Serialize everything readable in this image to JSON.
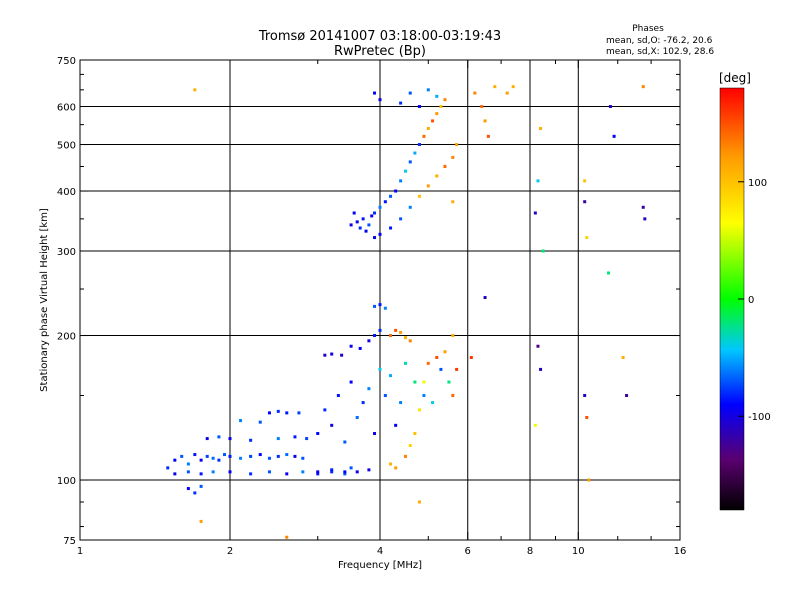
{
  "chart_data": {
    "type": "scatter",
    "title": "Tromsø 20141007 03:18:00-03:19:43",
    "subtitle": "RwPretec (Bp)",
    "xlabel": "Frequency [MHz]",
    "ylabel": "Stationary phase Virtual Height [km]",
    "x_scale": "log",
    "y_scale": "log",
    "xlim": [
      1,
      16
    ],
    "ylim": [
      75,
      750
    ],
    "x_ticks": [
      1,
      2,
      4,
      6,
      8,
      10,
      16
    ],
    "x_tick_labels": [
      "1",
      "2",
      "4",
      "6",
      "8",
      "10",
      "16"
    ],
    "x_gridlines": [
      2,
      4,
      6,
      8,
      10
    ],
    "y_ticks": [
      75,
      100,
      200,
      300,
      400,
      500,
      600,
      750
    ],
    "y_tick_labels": [
      "75",
      "100",
      "200",
      "300",
      "400",
      "500",
      "600",
      "750"
    ],
    "y_gridlines": [
      100,
      200,
      300,
      400,
      500,
      600
    ],
    "grid": true,
    "phases_box": {
      "title": "Phases",
      "line1": "mean, sd,O: -76.2, 20.6",
      "line2": "mean, sd,X: 102.9, 28.6"
    },
    "colorbar": {
      "label": "[deg]",
      "range": [
        -180,
        180
      ],
      "ticks": [
        100,
        0,
        -100
      ],
      "tick_labels": [
        "100",
        "0",
        "-100"
      ],
      "colormap": "rainbow"
    },
    "series": [
      {
        "comment_role": "trace",
        "points": [
          [
            1.5,
            106,
            -80
          ],
          [
            1.55,
            110,
            -90
          ],
          [
            1.6,
            112,
            -70
          ],
          [
            1.65,
            108,
            -60
          ],
          [
            1.7,
            113,
            -85
          ],
          [
            1.75,
            110,
            -95
          ],
          [
            1.8,
            112,
            -75
          ],
          [
            1.85,
            111,
            -65
          ],
          [
            1.9,
            110,
            -80
          ],
          [
            1.95,
            113,
            -70
          ],
          [
            2.0,
            112,
            -85
          ],
          [
            2.1,
            111,
            -60
          ],
          [
            2.2,
            112,
            -75
          ],
          [
            2.3,
            113,
            -90
          ],
          [
            2.4,
            111,
            -70
          ],
          [
            2.5,
            112,
            -80
          ],
          [
            2.6,
            113,
            -65
          ],
          [
            2.7,
            112,
            -95
          ],
          [
            2.8,
            111,
            -70
          ],
          [
            1.55,
            103,
            -100
          ],
          [
            1.65,
            104,
            -70
          ],
          [
            1.75,
            103,
            -85
          ],
          [
            1.85,
            104,
            -60
          ],
          [
            2.0,
            104,
            -90
          ],
          [
            2.2,
            103,
            -80
          ],
          [
            2.4,
            104,
            -70
          ],
          [
            2.6,
            103,
            -95
          ],
          [
            2.8,
            104,
            -60
          ],
          [
            3.0,
            103,
            -85
          ],
          [
            3.2,
            104,
            -80
          ],
          [
            3.4,
            103,
            -70
          ],
          [
            1.65,
            96,
            -90
          ],
          [
            1.7,
            94,
            -80
          ],
          [
            1.75,
            97,
            -70
          ],
          [
            1.8,
            122,
            -100
          ],
          [
            1.9,
            123,
            -70
          ],
          [
            2.0,
            122,
            -95
          ],
          [
            2.2,
            121,
            -80
          ],
          [
            2.5,
            122,
            -60
          ],
          [
            2.7,
            123,
            -85
          ],
          [
            2.85,
            122,
            -75
          ],
          [
            2.4,
            138,
            -90
          ],
          [
            2.5,
            139,
            -80
          ],
          [
            2.6,
            138,
            -85
          ],
          [
            2.75,
            138,
            -75
          ],
          [
            2.1,
            133,
            -60
          ],
          [
            2.3,
            132,
            -70
          ],
          [
            3.0,
            104,
            -95
          ],
          [
            3.2,
            105,
            -85
          ],
          [
            3.4,
            104,
            -90
          ],
          [
            3.5,
            106,
            -70
          ],
          [
            3.6,
            104,
            -95
          ],
          [
            3.8,
            105,
            -100
          ],
          [
            3.0,
            125,
            -90
          ],
          [
            3.1,
            140,
            -80
          ],
          [
            3.2,
            130,
            -100
          ],
          [
            3.3,
            150,
            -85
          ],
          [
            3.4,
            120,
            -70
          ],
          [
            3.5,
            160,
            -90
          ],
          [
            3.6,
            135,
            -65
          ],
          [
            3.7,
            145,
            -80
          ],
          [
            3.8,
            155,
            -60
          ],
          [
            3.9,
            125,
            -95
          ],
          [
            4.0,
            170,
            -40
          ],
          [
            4.1,
            150,
            -70
          ],
          [
            4.2,
            165,
            -50
          ],
          [
            4.3,
            130,
            -90
          ],
          [
            4.4,
            145,
            -60
          ],
          [
            3.1,
            182,
            -110
          ],
          [
            3.2,
            183,
            -100
          ],
          [
            3.35,
            182,
            -105
          ],
          [
            3.5,
            190,
            -95
          ],
          [
            3.65,
            188,
            -90
          ],
          [
            3.8,
            195,
            -100
          ],
          [
            3.9,
            200,
            -85
          ],
          [
            4.0,
            205,
            -80
          ],
          [
            3.9,
            230,
            -70
          ],
          [
            4.0,
            232,
            -85
          ],
          [
            4.1,
            228,
            -60
          ],
          [
            4.2,
            200,
            140
          ],
          [
            4.3,
            205,
            150
          ],
          [
            4.4,
            203,
            120
          ],
          [
            4.5,
            198,
            110
          ],
          [
            4.6,
            195,
            130
          ],
          [
            4.2,
            108,
            110
          ],
          [
            4.3,
            106,
            120
          ],
          [
            4.5,
            112,
            130
          ],
          [
            4.6,
            118,
            90
          ],
          [
            4.7,
            125,
            100
          ],
          [
            4.8,
            140,
            80
          ],
          [
            4.9,
            160,
            60
          ],
          [
            5.0,
            175,
            140
          ],
          [
            5.2,
            180,
            150
          ],
          [
            5.4,
            185,
            120
          ],
          [
            5.6,
            200,
            110
          ],
          [
            5.7,
            170,
            160
          ],
          [
            5.6,
            150,
            140
          ],
          [
            4.5,
            175,
            -30
          ],
          [
            4.7,
            160,
            -20
          ],
          [
            4.9,
            150,
            -60
          ],
          [
            5.1,
            145,
            -40
          ],
          [
            5.3,
            170,
            -70
          ],
          [
            5.5,
            160,
            -20
          ],
          [
            3.5,
            340,
            -100
          ],
          [
            3.55,
            360,
            -90
          ],
          [
            3.6,
            345,
            -95
          ],
          [
            3.65,
            335,
            -80
          ],
          [
            3.7,
            350,
            -85
          ],
          [
            3.75,
            330,
            -90
          ],
          [
            3.8,
            340,
            -70
          ],
          [
            3.85,
            355,
            -95
          ],
          [
            3.9,
            360,
            -80
          ],
          [
            4.0,
            370,
            -60
          ],
          [
            4.1,
            380,
            -85
          ],
          [
            4.2,
            390,
            -70
          ],
          [
            4.3,
            400,
            -90
          ],
          [
            4.4,
            420,
            -60
          ],
          [
            4.5,
            440,
            -40
          ],
          [
            4.6,
            460,
            -70
          ],
          [
            4.7,
            480,
            -50
          ],
          [
            4.8,
            500,
            -80
          ],
          [
            4.9,
            520,
            140
          ],
          [
            5.0,
            540,
            110
          ],
          [
            5.1,
            560,
            150
          ],
          [
            5.2,
            580,
            120
          ],
          [
            5.3,
            600,
            100
          ],
          [
            5.4,
            620,
            130
          ],
          [
            3.9,
            320,
            -95
          ],
          [
            4.0,
            325,
            -90
          ],
          [
            4.2,
            335,
            -85
          ],
          [
            4.4,
            350,
            -70
          ],
          [
            4.6,
            370,
            -60
          ],
          [
            4.8,
            390,
            100
          ],
          [
            5.0,
            410,
            120
          ],
          [
            5.2,
            430,
            110
          ],
          [
            5.4,
            450,
            140
          ],
          [
            5.6,
            470,
            130
          ],
          [
            5.7,
            500,
            120
          ],
          [
            5.6,
            380,
            110
          ],
          [
            3.9,
            640,
            -90
          ],
          [
            4.0,
            620,
            -100
          ],
          [
            4.4,
            610,
            -80
          ],
          [
            4.6,
            640,
            -70
          ],
          [
            4.8,
            600,
            -90
          ],
          [
            5.0,
            650,
            -60
          ],
          [
            5.2,
            630,
            -50
          ],
          [
            6.2,
            640,
            130
          ],
          [
            6.4,
            600,
            140
          ],
          [
            6.5,
            560,
            120
          ],
          [
            6.6,
            520,
            150
          ],
          [
            6.8,
            660,
            110
          ],
          [
            7.2,
            640,
            120
          ],
          [
            7.4,
            660,
            110
          ],
          [
            8.2,
            360,
            -110
          ],
          [
            8.3,
            420,
            -40
          ],
          [
            8.4,
            540,
            110
          ],
          [
            8.5,
            300,
            -20
          ],
          [
            8.3,
            190,
            -130
          ],
          [
            8.4,
            170,
            -110
          ],
          [
            8.2,
            130,
            60
          ],
          [
            10.3,
            380,
            -120
          ],
          [
            10.3,
            420,
            100
          ],
          [
            10.4,
            320,
            90
          ],
          [
            10.3,
            150,
            -110
          ],
          [
            10.4,
            135,
            150
          ],
          [
            10.5,
            100,
            120
          ],
          [
            11.6,
            600,
            -110
          ],
          [
            11.8,
            520,
            -90
          ],
          [
            11.5,
            270,
            -20
          ],
          [
            12.3,
            180,
            110
          ],
          [
            12.5,
            150,
            -120
          ],
          [
            13.5,
            370,
            -120
          ],
          [
            13.6,
            350,
            -110
          ],
          [
            13.5,
            660,
            130
          ],
          [
            1.7,
            650,
            110
          ],
          [
            1.75,
            82,
            120
          ],
          [
            2.6,
            76,
            130
          ],
          [
            4.8,
            90,
            110
          ],
          [
            6.1,
            180,
            160
          ],
          [
            6.5,
            240,
            -110
          ]
        ]
      }
    ]
  }
}
